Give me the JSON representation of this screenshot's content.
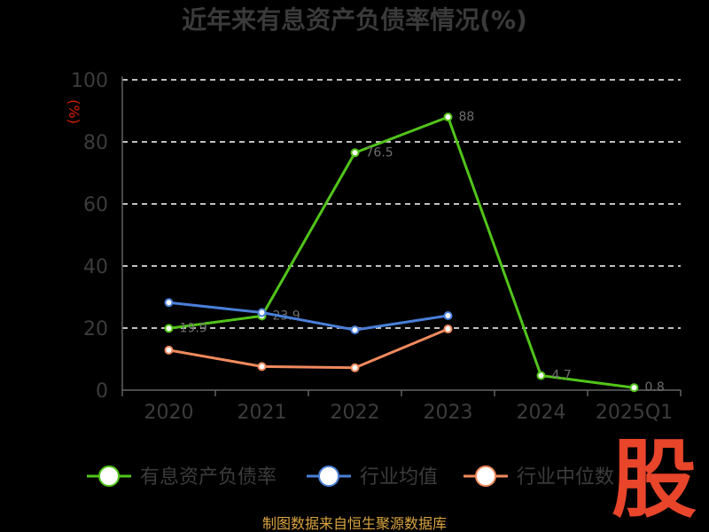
{
  "chart_data": {
    "type": "line",
    "title": "近年来有息资产负债率情况(%)",
    "ylabel": "(%)",
    "categories": [
      "2020",
      "2021",
      "2022",
      "2023",
      "2024",
      "2025Q1"
    ],
    "yticks": [
      "0",
      "20",
      "40",
      "60",
      "80",
      "100"
    ],
    "ylim": [
      0,
      100
    ],
    "grid": true,
    "legend_position": "bottom",
    "series": [
      {
        "name": "有息资产负债率",
        "color": "#52c41a",
        "values": [
          19.9,
          23.9,
          76.5,
          88.0,
          4.7,
          0.8
        ]
      },
      {
        "name": "行业均值",
        "color": "#4a7fd8",
        "values": [
          28.2,
          25.0,
          19.4,
          24.0,
          null,
          null
        ]
      },
      {
        "name": "行业中位数",
        "color": "#f08a5d",
        "values": [
          12.9,
          7.6,
          7.2,
          19.7,
          null,
          null
        ]
      }
    ]
  },
  "source": "制图数据来自恒生聚源数据库",
  "watermark": "股"
}
